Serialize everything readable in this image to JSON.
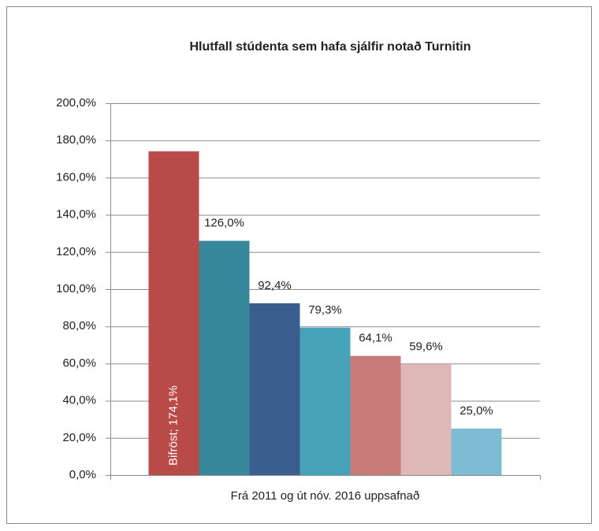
{
  "chart_data": {
    "type": "bar",
    "title": "Hlutfall stúdenta sem hafa sjálfir notað Turnitin",
    "categories": [
      "Frá 2011 og út nóv. 2016 uppsafnað"
    ],
    "series": [
      {
        "color": "#b84a47",
        "values": [
          174.1
        ],
        "value_labels": [
          "Bifröst; 174,1%"
        ]
      },
      {
        "color": "#37889a",
        "values": [
          126.0
        ],
        "value_labels": [
          "126,0%"
        ]
      },
      {
        "color": "#3a5f8f",
        "values": [
          92.4
        ],
        "value_labels": [
          "92,4%"
        ]
      },
      {
        "color": "#46a3ba",
        "values": [
          79.3
        ],
        "value_labels": [
          "79,3%"
        ]
      },
      {
        "color": "#c97b79",
        "values": [
          64.1
        ],
        "value_labels": [
          "64,1%"
        ]
      },
      {
        "color": "#dfb7b6",
        "values": [
          59.6
        ],
        "value_labels": [
          "59,6%"
        ]
      },
      {
        "color": "#7dbcd3",
        "values": [
          25.0
        ],
        "value_labels": [
          "25,0%"
        ]
      }
    ],
    "ylim": [
      0,
      200
    ],
    "yticks": [
      {
        "value": 0,
        "label": "0,0%"
      },
      {
        "value": 20,
        "label": "20,0%"
      },
      {
        "value": 40,
        "label": "40,0%"
      },
      {
        "value": 60,
        "label": "60,0%"
      },
      {
        "value": 80,
        "label": "80,0%"
      },
      {
        "value": 100,
        "label": "100,0%"
      },
      {
        "value": 120,
        "label": "120,0%"
      },
      {
        "value": 140,
        "label": "140,0%"
      },
      {
        "value": 160,
        "label": "160,0%"
      },
      {
        "value": 180,
        "label": "180,0%"
      },
      {
        "value": 200,
        "label": "200,0%"
      }
    ],
    "grid": true
  }
}
